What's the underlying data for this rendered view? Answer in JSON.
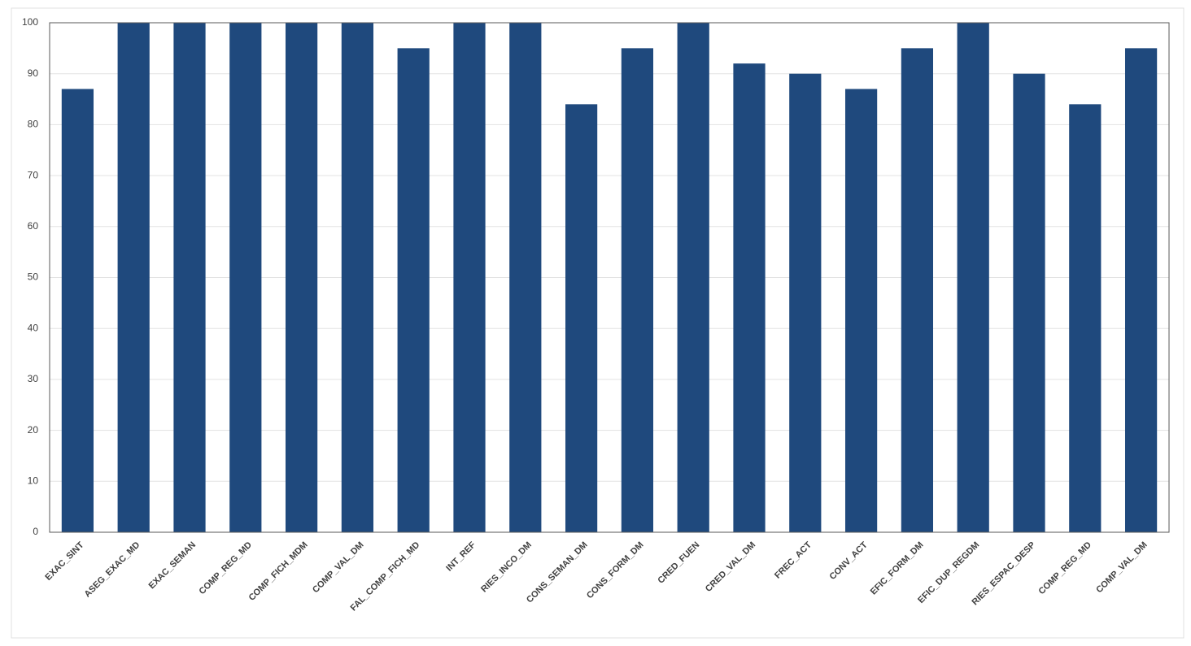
{
  "chart_data": {
    "type": "bar",
    "categories": [
      "EXAC_SINT",
      "ASEG_EXAC_MD",
      "EXAC_SEMAN",
      "COMP_REG_MD",
      "COMP_FICH_MDM",
      "COMP_VAL_DM",
      "FAL_COMP_FICH_MD",
      "INT_REF",
      "RIES_INCO_DM",
      "CONS_SEMAN_DM",
      "CONS_FORM_DM",
      "CRED_FUEN",
      "CRED_VAL_DM",
      "FREC_ACT",
      "CONV_ACT",
      "EFIC_FORM_DM",
      "EFIC_DUP_REGDM",
      "RIES_ESPAC_DESP",
      "COMP_REG_MD",
      "COMP_VAL_DM"
    ],
    "values": [
      87,
      100,
      100,
      100,
      100,
      100,
      95,
      100,
      100,
      84,
      95,
      100,
      92,
      90,
      87,
      95,
      100,
      90,
      84,
      95
    ],
    "color": "#1f497d",
    "ylim": [
      0,
      100
    ],
    "yticks": [
      0,
      10,
      20,
      30,
      40,
      50,
      60,
      70,
      80,
      90,
      100
    ],
    "grid": true
  }
}
